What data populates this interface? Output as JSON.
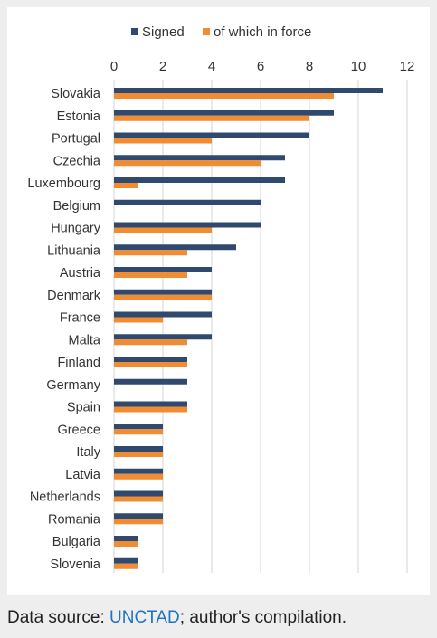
{
  "colors": {
    "signed": "#2f4a6e",
    "in_force": "#f28c33",
    "grid": "#d4d4d4",
    "label_text": "#333333"
  },
  "chart_data": {
    "type": "bar",
    "orientation": "horizontal",
    "title": "",
    "xlabel": "",
    "ylabel": "",
    "xlim": [
      0,
      12
    ],
    "x_ticks": [
      0,
      2,
      4,
      6,
      8,
      10,
      12
    ],
    "grid": true,
    "legend_position": "top",
    "categories": [
      "Slovakia",
      "Estonia",
      "Portugal",
      "Czechia",
      "Luxembourg",
      "Belgium",
      "Hungary",
      "Lithuania",
      "Austria",
      "Denmark",
      "France",
      "Malta",
      "Finland",
      "Germany",
      "Spain",
      "Greece",
      "Italy",
      "Latvia",
      "Netherlands",
      "Romania",
      "Bulgaria",
      "Slovenia"
    ],
    "series": [
      {
        "name": "Signed",
        "color": "#2f4a6e",
        "values": [
          11,
          9,
          8,
          7,
          7,
          6,
          6,
          5,
          4,
          4,
          4,
          4,
          3,
          3,
          3,
          2,
          2,
          2,
          2,
          2,
          1,
          1
        ]
      },
      {
        "name": "of which in force",
        "color": "#f28c33",
        "values": [
          9,
          8,
          4,
          6,
          1,
          0,
          4,
          3,
          3,
          4,
          2,
          3,
          3,
          0,
          3,
          2,
          2,
          2,
          2,
          2,
          1,
          1
        ]
      }
    ]
  },
  "footer": {
    "prefix": "Data source: ",
    "link_text": "UNCTAD",
    "suffix": "; author's compilation."
  }
}
